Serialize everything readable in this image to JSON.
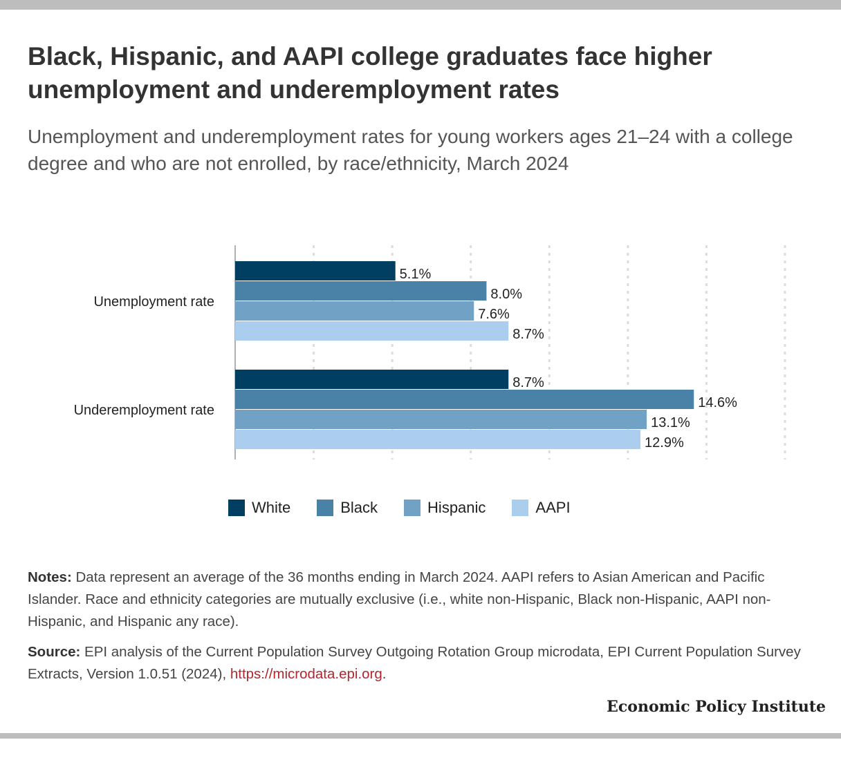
{
  "title": "Black, Hispanic, and AAPI college graduates face higher unemployment and underemployment rates",
  "subtitle": "Unemployment and underemployment rates for young workers ages 21–24 with a college degree and who are not enrolled, by race/ethnicity, March 2024",
  "chart_data": {
    "type": "bar",
    "orientation": "horizontal",
    "categories": [
      "Unemployment rate",
      "Underemployment rate"
    ],
    "series": [
      {
        "name": "White",
        "color": "#003f62",
        "values": [
          5.1,
          8.7
        ],
        "labels": [
          "5.1%",
          "8.7%"
        ]
      },
      {
        "name": "Black",
        "color": "#4a81a6",
        "values": [
          8.0,
          14.6
        ],
        "labels": [
          "8.0%",
          "14.6%"
        ]
      },
      {
        "name": "Hispanic",
        "color": "#72a1c6",
        "values": [
          7.6,
          13.1
        ],
        "labels": [
          "7.6%",
          "13.1%"
        ]
      },
      {
        "name": "AAPI",
        "color": "#abcdee",
        "values": [
          8.7,
          12.9
        ],
        "labels": [
          "8.7%",
          "12.9%"
        ]
      }
    ],
    "xlim": [
      0,
      17.5
    ],
    "grid_step": 2.5,
    "grid": true,
    "axis_tick_labels": false,
    "legend_position": "bottom"
  },
  "notes": {
    "label": "Notes:",
    "text": "Data represent an average of the 36 months ending in March 2024. AAPI refers to Asian American and Pacific Islander. Race and ethnicity categories are mutually exclusive (i.e., white non-Hispanic, Black non-Hispanic, AAPI non-Hispanic, and Hispanic any race)."
  },
  "source": {
    "label": "Source:",
    "text": "EPI analysis of the Current Population Survey Outgoing Rotation Group microdata, EPI Current Population Survey Extracts, Version 1.0.51 (2024),",
    "link": "https://microdata.epi.org",
    "end": "."
  },
  "branding": "Economic Policy Institute"
}
